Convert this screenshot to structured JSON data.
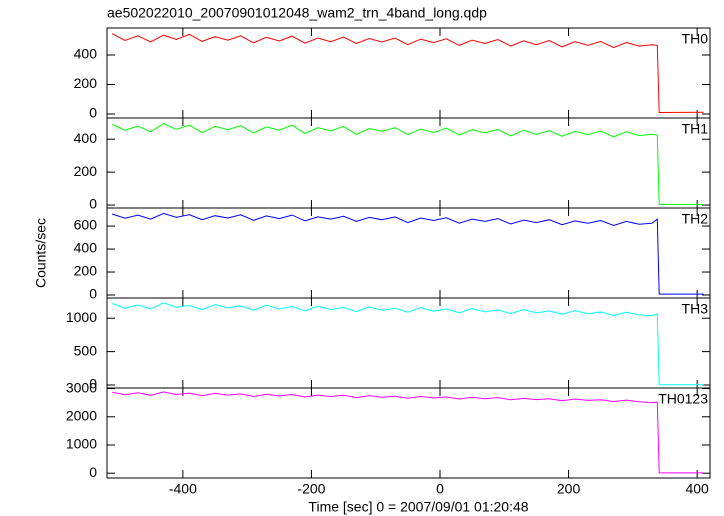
{
  "chart_data": [
    {
      "type": "line",
      "title": "ae502022010_20070901012048_wam2_trn_4band_long.qdp",
      "label": "TH0",
      "color": "#ff0000",
      "x": [
        -510,
        -490,
        -470,
        -450,
        -430,
        -410,
        -390,
        -370,
        -350,
        -330,
        -310,
        -290,
        -270,
        -250,
        -230,
        -210,
        -190,
        -170,
        -150,
        -130,
        -110,
        -90,
        -70,
        -50,
        -30,
        -10,
        10,
        30,
        50,
        70,
        90,
        110,
        130,
        150,
        170,
        190,
        210,
        230,
        250,
        270,
        290,
        310,
        330,
        338,
        341,
        410
      ],
      "values": [
        545,
        498,
        530,
        488,
        535,
        505,
        540,
        492,
        525,
        500,
        530,
        482,
        520,
        495,
        528,
        480,
        515,
        490,
        522,
        478,
        512,
        488,
        515,
        470,
        508,
        484,
        510,
        465,
        500,
        478,
        505,
        460,
        496,
        470,
        498,
        455,
        490,
        466,
        492,
        450,
        485,
        460,
        470,
        465,
        10,
        12
      ],
      "xlim": [
        -518,
        420
      ],
      "xticks": [
        -400,
        -200,
        0,
        200,
        400
      ],
      "ylim": [
        -27,
        583
      ],
      "yticks": [
        0,
        200,
        400
      ]
    },
    {
      "type": "line",
      "label": "TH1",
      "color": "#00ff00",
      "x": [
        -510,
        -490,
        -470,
        -450,
        -430,
        -410,
        -390,
        -370,
        -350,
        -330,
        -310,
        -290,
        -270,
        -250,
        -230,
        -210,
        -190,
        -170,
        -150,
        -130,
        -110,
        -90,
        -70,
        -50,
        -30,
        -10,
        10,
        30,
        50,
        70,
        90,
        110,
        130,
        150,
        170,
        190,
        210,
        230,
        250,
        270,
        290,
        310,
        330,
        338,
        341,
        410
      ],
      "values": [
        490,
        455,
        480,
        445,
        495,
        460,
        485,
        440,
        478,
        458,
        482,
        438,
        475,
        455,
        485,
        435,
        470,
        450,
        478,
        430,
        465,
        448,
        470,
        428,
        462,
        440,
        468,
        425,
        458,
        438,
        460,
        420,
        455,
        430,
        452,
        418,
        448,
        428,
        450,
        415,
        445,
        422,
        430,
        425,
        3,
        4
      ],
      "xlim": [
        -518,
        420
      ],
      "xticks": [
        -400,
        -200,
        0,
        200,
        400
      ],
      "ylim": [
        -18,
        529
      ],
      "yticks": [
        0,
        200,
        400
      ]
    },
    {
      "type": "line",
      "label": "TH2",
      "color": "#0000ff",
      "ylabel": "Counts/sec",
      "x": [
        -510,
        -490,
        -470,
        -450,
        -430,
        -410,
        -390,
        -370,
        -350,
        -330,
        -310,
        -290,
        -270,
        -250,
        -230,
        -210,
        -190,
        -170,
        -150,
        -130,
        -110,
        -90,
        -70,
        -50,
        -30,
        -10,
        10,
        30,
        50,
        70,
        90,
        110,
        130,
        150,
        170,
        190,
        210,
        230,
        250,
        270,
        290,
        310,
        330,
        338,
        341,
        410
      ],
      "values": [
        705,
        668,
        695,
        660,
        710,
        675,
        700,
        655,
        690,
        670,
        698,
        650,
        688,
        665,
        695,
        645,
        680,
        660,
        685,
        640,
        675,
        655,
        680,
        630,
        670,
        648,
        672,
        625,
        660,
        640,
        665,
        618,
        652,
        630,
        655,
        612,
        645,
        625,
        648,
        605,
        640,
        615,
        625,
        660,
        8,
        8
      ],
      "xlim": [
        -518,
        420
      ],
      "xticks": [
        -400,
        -200,
        0,
        200,
        400
      ],
      "ylim": [
        -26,
        757
      ],
      "yticks": [
        0,
        200,
        400,
        600
      ]
    },
    {
      "type": "line",
      "label": "TH3",
      "color": "#00ffff",
      "x": [
        -510,
        -490,
        -470,
        -450,
        -430,
        -410,
        -390,
        -370,
        -350,
        -330,
        -310,
        -290,
        -270,
        -250,
        -230,
        -210,
        -190,
        -170,
        -150,
        -130,
        -110,
        -90,
        -70,
        -50,
        -30,
        -10,
        10,
        30,
        50,
        70,
        90,
        110,
        130,
        150,
        170,
        190,
        210,
        230,
        250,
        270,
        290,
        310,
        330,
        338,
        341,
        410
      ],
      "values": [
        1220,
        1150,
        1200,
        1140,
        1230,
        1165,
        1190,
        1130,
        1205,
        1155,
        1185,
        1120,
        1195,
        1140,
        1175,
        1110,
        1180,
        1130,
        1160,
        1100,
        1170,
        1120,
        1150,
        1090,
        1160,
        1105,
        1140,
        1080,
        1145,
        1095,
        1125,
        1070,
        1130,
        1080,
        1110,
        1060,
        1115,
        1065,
        1095,
        1040,
        1090,
        1050,
        1040,
        1060,
        5,
        5
      ],
      "xlim": [
        -518,
        420
      ],
      "xticks": [
        -400,
        -200,
        0,
        200,
        400
      ],
      "ylim": [
        -45,
        1303
      ],
      "yticks": [
        0,
        500,
        1000
      ]
    },
    {
      "type": "line",
      "label": "TH0123",
      "color": "#ff00ff",
      "xlabel": "Time [sec] 0 = 2007/09/01 01:20:48",
      "x": [
        -510,
        -490,
        -470,
        -450,
        -430,
        -410,
        -390,
        -370,
        -350,
        -330,
        -310,
        -290,
        -270,
        -250,
        -230,
        -210,
        -190,
        -170,
        -150,
        -130,
        -110,
        -90,
        -70,
        -50,
        -30,
        -10,
        10,
        30,
        50,
        70,
        90,
        110,
        130,
        150,
        170,
        190,
        210,
        230,
        250,
        270,
        290,
        310,
        330,
        338,
        341,
        410
      ],
      "values": [
        2870,
        2780,
        2850,
        2760,
        2880,
        2790,
        2840,
        2750,
        2830,
        2770,
        2810,
        2720,
        2800,
        2740,
        2790,
        2700,
        2770,
        2720,
        2760,
        2680,
        2750,
        2690,
        2730,
        2660,
        2720,
        2670,
        2700,
        2630,
        2690,
        2640,
        2680,
        2600,
        2650,
        2610,
        2640,
        2570,
        2630,
        2580,
        2600,
        2540,
        2590,
        2530,
        2500,
        2520,
        10,
        10
      ],
      "xlim": [
        -518,
        420
      ],
      "xticks": [
        -400,
        -200,
        0,
        200,
        400
      ],
      "ylim": [
        -170,
        3020
      ],
      "yticks": [
        0,
        1000,
        2000,
        3000
      ]
    }
  ]
}
